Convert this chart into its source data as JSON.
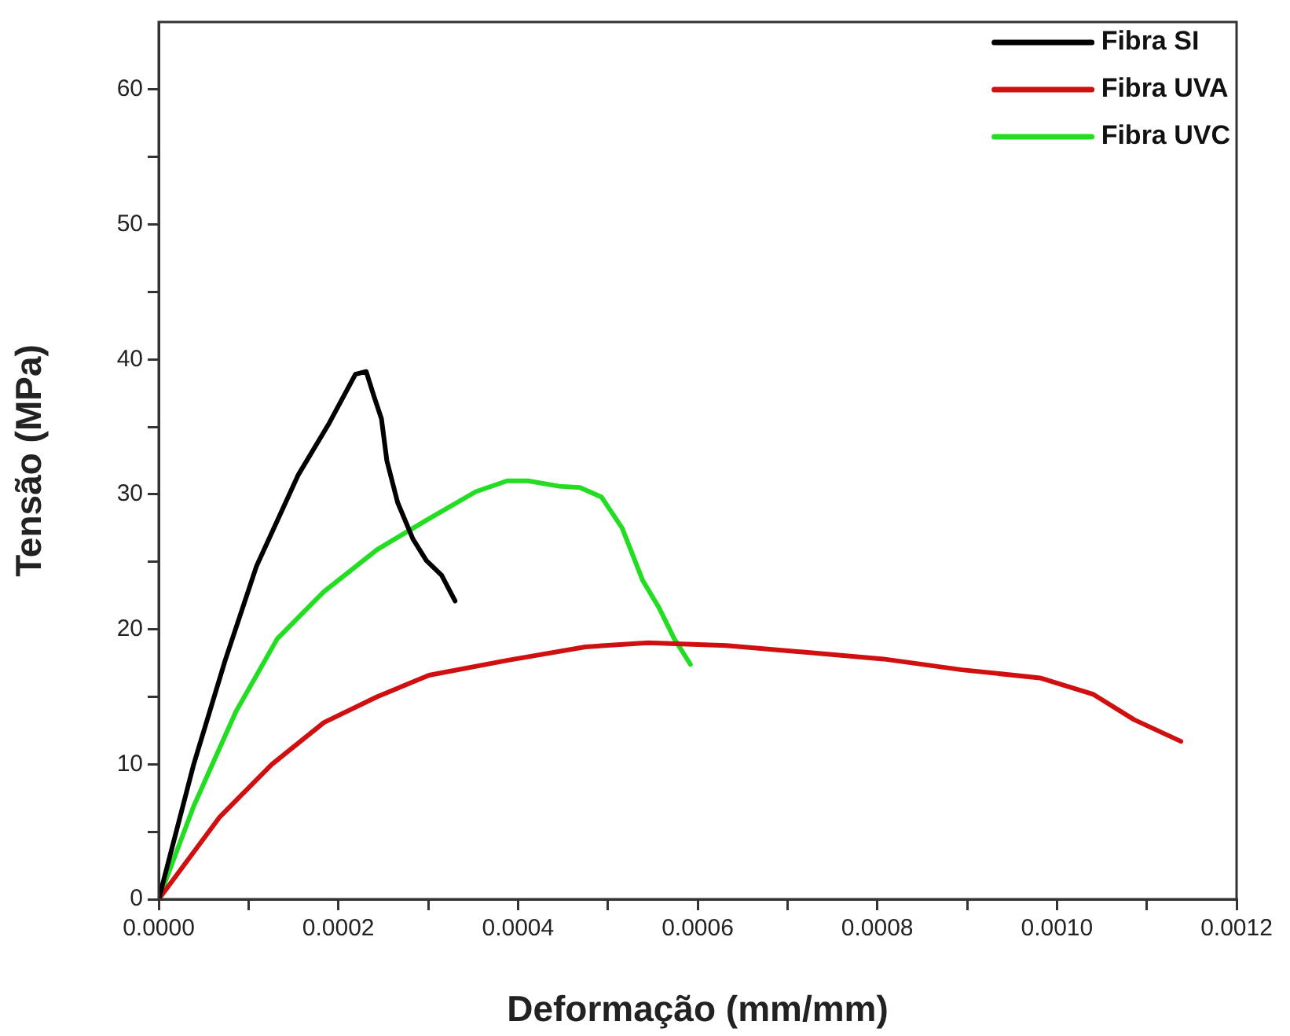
{
  "chart_data": {
    "type": "line",
    "xlabel": "Deformação (mm/mm)",
    "ylabel": "Tensão (MPa)",
    "xlim": [
      0,
      0.0012
    ],
    "xticks": [
      {
        "value": 0,
        "label": "0.0000"
      },
      {
        "value": 0.0001,
        "label": null
      },
      {
        "value": 0.0002,
        "label": "0.0002"
      },
      {
        "value": 0.0003,
        "label": null
      },
      {
        "value": 0.0004,
        "label": "0.0004"
      },
      {
        "value": 0.0005,
        "label": null
      },
      {
        "value": 0.0006,
        "label": "0.0006"
      },
      {
        "value": 0.0007,
        "label": null
      },
      {
        "value": 0.0008,
        "label": "0.0008"
      },
      {
        "value": 0.0009,
        "label": null
      },
      {
        "value": 0.001,
        "label": "0.0010"
      },
      {
        "value": 0.0011,
        "label": null
      },
      {
        "value": 0.0012,
        "label": "0.0012"
      }
    ],
    "ylim": [
      0,
      65
    ],
    "yticks": [
      0,
      {
        "value": 5,
        "label": null
      },
      10,
      {
        "value": 15,
        "label": null
      },
      20,
      {
        "value": 25,
        "label": null
      },
      30,
      {
        "value": 35,
        "label": null
      },
      40,
      {
        "value": 45,
        "label": null
      },
      50,
      {
        "value": 55,
        "label": null
      },
      60
    ],
    "grid": false,
    "legend": "top right",
    "marker": "none",
    "line_style": "solid",
    "series": [
      {
        "name": "Fibra SI",
        "color": "#000000",
        "x": [
          0,
          3.9e-05,
          7.4e-05,
          0.000109,
          0.000155,
          0.00019,
          0.000219,
          0.000231,
          0.00024,
          0.000248,
          0.000254,
          0.000266,
          0.000283,
          0.000298,
          0.000315,
          0.00033
        ],
        "values": [
          0,
          10,
          17.7,
          24.7,
          31.4,
          35.3,
          38.9,
          39.1,
          37.2,
          35.6,
          32.5,
          29.4,
          26.7,
          25.1,
          24,
          22.1
        ]
      },
      {
        "name": "Fibra UVA",
        "color": "#d01010",
        "x": [
          0,
          6.8e-05,
          0.000126,
          0.000184,
          0.000243,
          0.000301,
          0.000388,
          0.000475,
          0.000545,
          0.000632,
          0.00072,
          0.000807,
          0.000894,
          0.000981,
          0.00104,
          0.001086,
          0.001138
        ],
        "values": [
          0,
          6.1,
          10,
          13.1,
          15,
          16.6,
          17.7,
          18.7,
          19,
          18.8,
          18.3,
          17.8,
          17,
          16.4,
          15.2,
          13.3,
          11.7
        ]
      },
      {
        "name": "Fibra UVC",
        "color": "#22dd22",
        "x": [
          0,
          3.9e-05,
          8.6e-05,
          0.000132,
          0.000184,
          0.000243,
          0.000301,
          0.000353,
          0.000388,
          0.000411,
          0.000446,
          0.000469,
          0.000493,
          0.000516,
          0.000539,
          0.000557,
          0.000574,
          0.000592
        ],
        "values": [
          0,
          6.9,
          13.9,
          19.3,
          22.8,
          25.9,
          28.2,
          30.2,
          31,
          31,
          30.6,
          30.5,
          29.8,
          27.5,
          23.6,
          21.6,
          19.3,
          17.4
        ]
      }
    ]
  }
}
